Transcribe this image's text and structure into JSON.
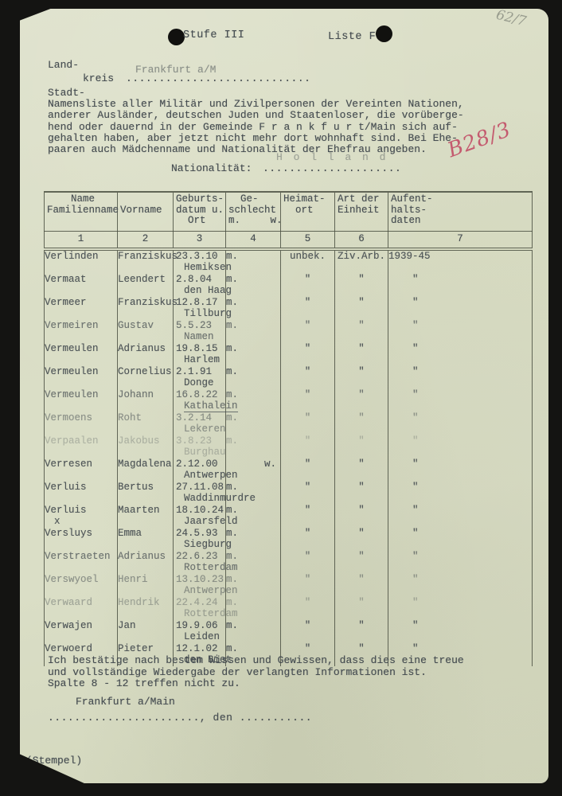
{
  "header": {
    "stufe": "Stufe III",
    "liste": "Liste F",
    "corner_note": "62/7"
  },
  "form": {
    "land_label": "Land-",
    "kreis_label": "kreis",
    "kreis_dots": "............................",
    "kreis_value": "Frankfurt a/M",
    "stadt_label": "Stadt-",
    "intro_lines": [
      "Namensliste aller Militär und Zivilpersonen der Vereinten Nationen,",
      "anderer Ausländer, deutschen Juden und Staatenloser, die vorüberge-",
      "hend oder dauernd in der Gemeinde F r a n k f u r t/Main sich auf-",
      "gehalten haben, aber jetzt nicht mehr dort wohnhaft sind. Bei Ehe-",
      "paaren auch Mädchenname und Nationalität der Ehefrau angeben."
    ],
    "nationality_label": "Nationalität:",
    "nationality_dots": ".....................",
    "nationality_value": "H o l l a n d",
    "red_ink_note": "B28/3"
  },
  "table": {
    "headers": {
      "name": "    Name\nFamilienname",
      "vorname": "\nVorname",
      "geburt": "Geburts-\ndatum u.\n  Ort",
      "geschlecht": "  Ge-\nschlecht\nm.     w.",
      "heimat": "Heimat-\n  ort",
      "einheit": "Art der\nEinheit",
      "aufenthalt": "Aufent-\nhalts-\ndaten"
    },
    "numbers": [
      "1",
      "2",
      "3",
      "4",
      "5",
      "6",
      "7"
    ],
    "rows": [
      {
        "familienname": "Verlinden",
        "vorname": "Franziskus",
        "geb_datum": "23.3.10",
        "geb_ort": "Hemiksen",
        "geschlecht": "m",
        "heimatort": "unbek.",
        "einheit": "Ziv.Arb.",
        "aufenthalt": "1939-45",
        "fade": 0
      },
      {
        "familienname": "Vermaat",
        "vorname": "Leendert",
        "geb_datum": "2.8.04",
        "geb_ort": "den Haag",
        "geschlecht": "m",
        "heimatort": "\"",
        "einheit": "\"",
        "aufenthalt": "\"",
        "fade": 0
      },
      {
        "familienname": "Vermeer",
        "vorname": "Franziskus",
        "geb_datum": "12.8.17",
        "geb_ort": "Tillburg",
        "geschlecht": "m",
        "heimatort": "\"",
        "einheit": "\"",
        "aufenthalt": "\"",
        "fade": 0
      },
      {
        "familienname": "Vermeiren",
        "vorname": "Gustav",
        "geb_datum": "5.5.23",
        "geb_ort": "Namen",
        "geschlecht": "m",
        "heimatort": "\"",
        "einheit": "\"",
        "aufenthalt": "\"",
        "fade": 1
      },
      {
        "familienname": "Vermeulen",
        "vorname": "Adrianus",
        "geb_datum": "19.8.15",
        "geb_ort": "Harlem",
        "geschlecht": "m",
        "heimatort": "\"",
        "einheit": "\"",
        "aufenthalt": "\"",
        "fade": 0
      },
      {
        "familienname": "Vermeulen",
        "vorname": "Cornelius",
        "geb_datum": "2.1.91",
        "geb_ort": "Donge",
        "geschlecht": "m",
        "heimatort": "\"",
        "einheit": "\"",
        "aufenthalt": "\"",
        "fade": 0
      },
      {
        "familienname": "Vermeulen",
        "vorname": "Johann",
        "geb_datum": "16.8.22",
        "geb_ort": "Kathalein",
        "underline_ort": true,
        "geschlecht": "m",
        "heimatort": "\"",
        "einheit": "\"",
        "aufenthalt": "\"",
        "fade": 1
      },
      {
        "familienname": "Vermoens",
        "vorname": "Roht",
        "geb_datum": "3.2.14",
        "geb_ort": "Lekeren",
        "geschlecht": "m",
        "heimatort": "\"",
        "einheit": "\"",
        "aufenthalt": "\"",
        "fade": 2
      },
      {
        "familienname": "Verpaalen",
        "vorname": "Jakobus",
        "geb_datum": "3.8.23",
        "geb_ort": "Burghau",
        "geschlecht": "m",
        "heimatort": "\"",
        "einheit": "\"",
        "aufenthalt": "\"",
        "fade": 4
      },
      {
        "familienname": "Verresen",
        "vorname": "Magdalena",
        "geb_datum": "2.12.00",
        "geb_ort": "Antwerpen",
        "geschlecht": "w",
        "heimatort": "\"",
        "einheit": "\"",
        "aufenthalt": "\"",
        "fade": 0
      },
      {
        "familienname": "Verluis",
        "vorname": "Bertus",
        "geb_datum": "27.11.08",
        "geb_ort": "Waddinmurdre",
        "geschlecht": "m",
        "heimatort": "\"",
        "einheit": "\"",
        "aufenthalt": "\"",
        "fade": 0
      },
      {
        "familienname": "Verluis",
        "note": "x",
        "vorname": "Maarten",
        "geb_datum": "18.10.24",
        "geb_ort": "Jaarsfeld",
        "geschlecht": "m",
        "heimatort": "\"",
        "einheit": "\"",
        "aufenthalt": "\"",
        "fade": 0
      },
      {
        "familienname": "Versluys",
        "vorname": "Emma",
        "geb_datum": "24.5.93",
        "geb_ort": "Siegburg",
        "geschlecht": "m",
        "heimatort": "\"",
        "einheit": "\"",
        "aufenthalt": "\"",
        "fade": 0
      },
      {
        "familienname": "Verstraeten",
        "vorname": "Adrianus",
        "geb_datum": "22.6.23",
        "geb_ort": "Rotterdam",
        "geschlecht": "m",
        "heimatort": "\"",
        "einheit": "\"",
        "aufenthalt": "\"",
        "fade": 1
      },
      {
        "familienname": "Verswyoel",
        "vorname": "Henri",
        "geb_datum": "13.10.23",
        "geb_ort": "Antwerpen",
        "geschlecht": "m",
        "heimatort": "\"",
        "einheit": "\"",
        "aufenthalt": "\"",
        "fade": 2
      },
      {
        "familienname": "Verwaard",
        "vorname": "Hendrik",
        "geb_datum": "22.4.24",
        "geb_ort": "Rotterdam",
        "geschlecht": "m",
        "heimatort": "\"",
        "einheit": "\"",
        "aufenthalt": "\"",
        "fade": 3
      },
      {
        "familienname": "Verwajen",
        "vorname": "Jan",
        "geb_datum": "19.9.06",
        "geb_ort": "Leiden",
        "geschlecht": "m",
        "heimatort": "\"",
        "einheit": "\"",
        "aufenthalt": "\"",
        "fade": 0
      },
      {
        "familienname": "Verwoerd",
        "vorname": "Pieter",
        "geb_datum": "12.1.02",
        "geb_ort": "den Biet",
        "geschlecht": "m",
        "heimatort": "\"",
        "einheit": "\"",
        "aufenthalt": "\"",
        "fade": 0
      }
    ]
  },
  "footer": {
    "declaration_lines": [
      "Ich bestätige nach bestem Wissen und Gewissen, dass dies eine treue",
      "und vollständige Wiedergabe der verlangten Informationen ist.",
      "Spalte 8 - 12 treffen nicht zu."
    ],
    "place_value": "Frankfurt a/Main",
    "signature_line": "......................., den ...........",
    "stamp_note": "(Stempel)"
  }
}
